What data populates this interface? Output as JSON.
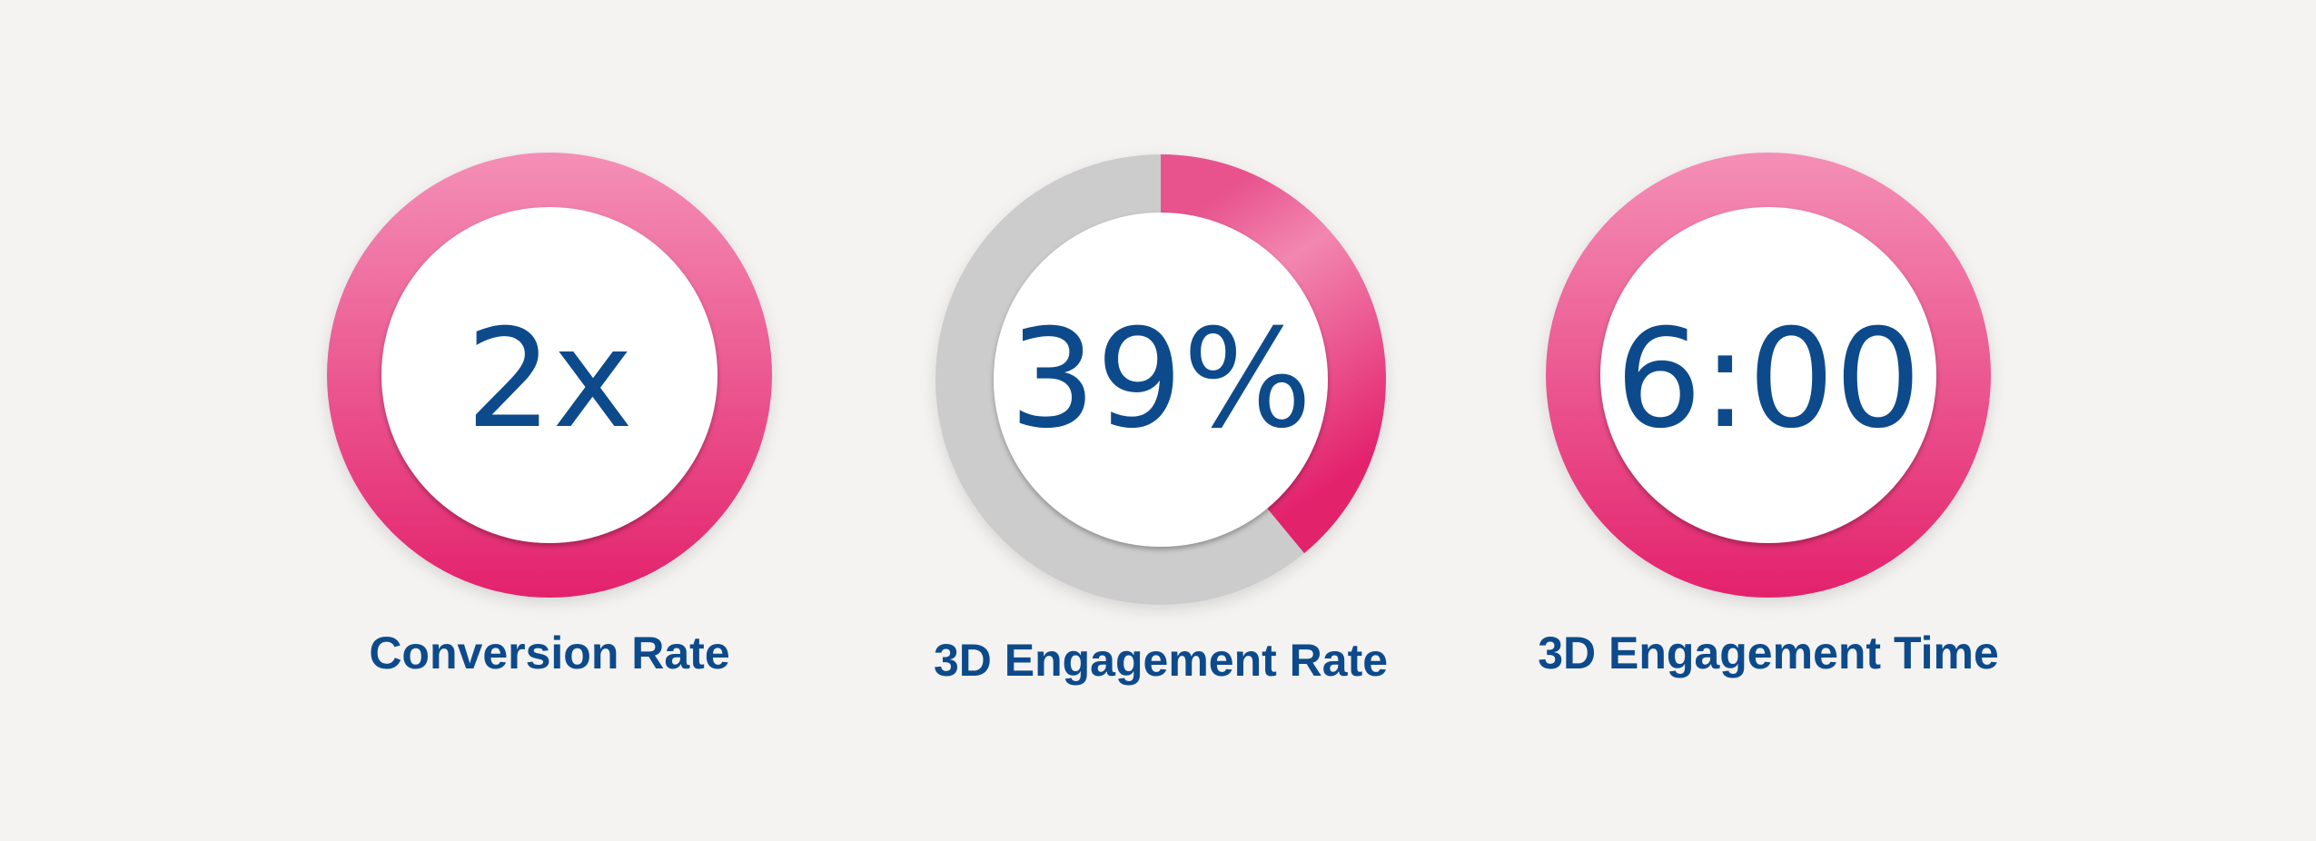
{
  "metrics": [
    {
      "value": "2x",
      "label": "Conversion Rate"
    },
    {
      "value": "39%",
      "label": "3D Engagement Rate",
      "fill_fraction": 0.39
    },
    {
      "value": "6:00",
      "label": "3D Engagement Time"
    }
  ],
  "colors": {
    "text": "#0d4a8c",
    "ring_light": "#f48fb6",
    "ring_dark": "#e3226c",
    "track": "#cccccc",
    "background": "#f4f3f1"
  }
}
